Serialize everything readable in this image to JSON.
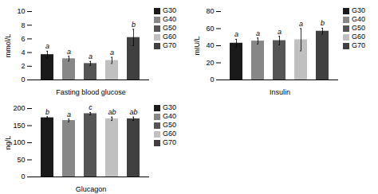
{
  "chart_data": [
    {
      "type": "bar",
      "categories": [
        "G30",
        "G40",
        "G50",
        "G60",
        "G70"
      ],
      "values": [
        3.7,
        3.1,
        2.4,
        2.85,
        6.2
      ],
      "errors": [
        0.5,
        0.35,
        0.3,
        0.45,
        1.2
      ],
      "annotations": [
        "a",
        "a",
        "a",
        "a",
        "b"
      ],
      "colors": [
        "#1a1a1a",
        "#878787",
        "#555555",
        "#c0c0c0",
        "#404040"
      ],
      "ylabel": "mmol/L",
      "xlabel": "Fasting blood glucose",
      "ylim": [
        0,
        10
      ],
      "yticks": [
        0,
        2,
        4,
        6,
        8,
        10
      ],
      "legend": "right",
      "tick_labels": "y",
      "grid": false
    },
    {
      "type": "bar",
      "categories": [
        "G30",
        "G40",
        "G50",
        "G60",
        "G70"
      ],
      "values": [
        43,
        45.5,
        46,
        47,
        57
      ],
      "errors": [
        4.5,
        3.5,
        5.0,
        13.0,
        3.5
      ],
      "annotations": [
        "a",
        "a",
        "a",
        "a",
        "b"
      ],
      "colors": [
        "#1a1a1a",
        "#878787",
        "#555555",
        "#c0c0c0",
        "#404040"
      ],
      "ylabel": "mIU/L",
      "xlabel": "Insulin",
      "ylim": [
        0,
        80
      ],
      "yticks": [
        0,
        20,
        40,
        60,
        80
      ],
      "legend": "right",
      "tick_labels": "y",
      "grid": false
    },
    {
      "type": "bar",
      "categories": [
        "G30",
        "G40",
        "G50",
        "G60",
        "G70"
      ],
      "values": [
        173,
        165,
        185,
        170,
        170
      ],
      "errors": [
        3.0,
        4.0,
        3.5,
        5.0,
        5.0
      ],
      "annotations": [
        "b",
        "a",
        "c",
        "ab",
        "ab"
      ],
      "colors": [
        "#1a1a1a",
        "#878787",
        "#555555",
        "#c0c0c0",
        "#404040"
      ],
      "ylabel": "ng/L",
      "xlabel": "Glucagon",
      "ylim": [
        0,
        200
      ],
      "yticks": [
        0,
        50,
        100,
        150,
        200
      ],
      "legend": "right",
      "tick_labels": "y",
      "grid": false
    }
  ]
}
